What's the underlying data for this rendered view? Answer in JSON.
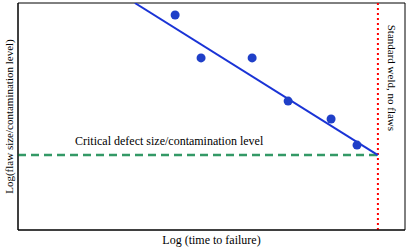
{
  "chart_data": {
    "type": "scatter",
    "x_label": "Log (time to failure)",
    "y_label": "Log(flaw size/contamination level)",
    "xlim": [
      0,
      10
    ],
    "ylim": [
      0,
      10
    ],
    "tick_labels": false,
    "x": [
      4.06,
      4.73,
      6.05,
      6.98,
      8.09,
      8.76
    ],
    "values": [
      9.47,
      7.58,
      7.58,
      5.68,
      4.89,
      3.74
    ],
    "color": "#1f3fc8",
    "marker": "circle",
    "fit_line": {
      "x": [
        3.02,
        9.3
      ],
      "values": [
        10,
        3.3
      ],
      "color": "#1a33d6"
    },
    "annotations": [
      {
        "text": "Critical defect size/contamination level",
        "y": 3.3,
        "color": "#339966",
        "line_style": "dashed"
      },
      {
        "text": "Standard weld, no flaws",
        "x": 9.3,
        "color": "#ff0000",
        "line_style": "dotted"
      }
    ]
  }
}
